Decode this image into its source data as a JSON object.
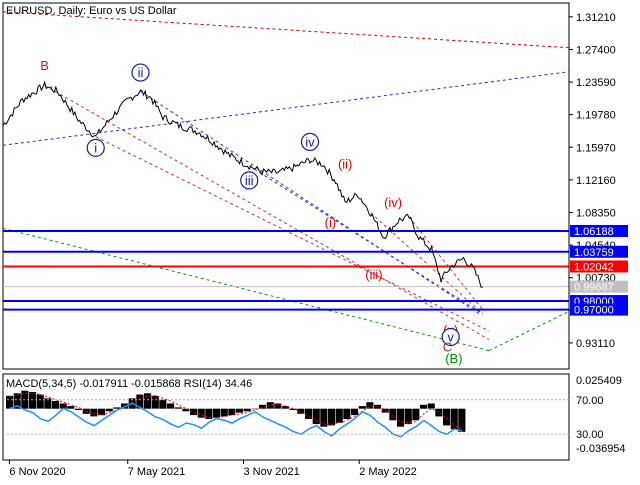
{
  "chart_data": [
    {
      "type": "line",
      "title": "EURUSD, Daily:  Euro vs US Dollar",
      "ylim": [
        0.9006,
        1.3283
      ],
      "y_ticks": [
        "1.31210",
        "1.27400",
        "1.23590",
        "1.19780",
        "1.15970",
        "1.12160",
        "1.08350",
        "1.04540",
        "1.00730",
        "0.96920",
        "0.93110"
      ],
      "x_ticks": [
        "6 Nov 2020",
        "7 May 2021",
        "3 Nov 2021",
        "2 May 2022"
      ],
      "x_tick_pos": [
        0.0,
        185.0,
        366.0,
        547.0
      ],
      "x_range": [
        -10,
        875
      ],
      "x_unit": "days from 6 Nov 2020",
      "price_series": [
        {
          "x": -10,
          "y": 1.185
        },
        {
          "x": 20,
          "y": 1.215
        },
        {
          "x": 55,
          "y": 1.232
        },
        {
          "x": 75,
          "y": 1.225
        },
        {
          "x": 110,
          "y": 1.19
        },
        {
          "x": 135,
          "y": 1.172
        },
        {
          "x": 160,
          "y": 1.195
        },
        {
          "x": 185,
          "y": 1.215
        },
        {
          "x": 205,
          "y": 1.225
        },
        {
          "x": 222,
          "y": 1.217
        },
        {
          "x": 240,
          "y": 1.195
        },
        {
          "x": 265,
          "y": 1.185
        },
        {
          "x": 295,
          "y": 1.178
        },
        {
          "x": 320,
          "y": 1.165
        },
        {
          "x": 345,
          "y": 1.15
        },
        {
          "x": 375,
          "y": 1.138
        },
        {
          "x": 395,
          "y": 1.131
        },
        {
          "x": 420,
          "y": 1.13
        },
        {
          "x": 445,
          "y": 1.136
        },
        {
          "x": 470,
          "y": 1.145
        },
        {
          "x": 490,
          "y": 1.14
        },
        {
          "x": 510,
          "y": 1.12
        },
        {
          "x": 525,
          "y": 1.095
        },
        {
          "x": 545,
          "y": 1.105
        },
        {
          "x": 565,
          "y": 1.083
        },
        {
          "x": 585,
          "y": 1.055
        },
        {
          "x": 610,
          "y": 1.075
        },
        {
          "x": 625,
          "y": 1.078
        },
        {
          "x": 640,
          "y": 1.055
        },
        {
          "x": 660,
          "y": 1.04
        },
        {
          "x": 675,
          "y": 1.005
        },
        {
          "x": 690,
          "y": 1.02
        },
        {
          "x": 710,
          "y": 1.03
        },
        {
          "x": 725,
          "y": 1.018
        },
        {
          "x": 740,
          "y": 0.996
        }
      ],
      "horizontal_levels": [
        {
          "value": 1.06188,
          "label": "1.06188",
          "color": "#0000ff"
        },
        {
          "value": 1.03759,
          "label": "1.03759",
          "color": "#0000ff"
        },
        {
          "value": 1.02042,
          "label": "1.02042",
          "color": "#ff0000"
        },
        {
          "value": 0.99687,
          "label": "0.99687",
          "color": "#c0c0c0"
        },
        {
          "value": 0.98,
          "label": "0.98000",
          "color": "#0000ff"
        },
        {
          "value": 0.97,
          "label": "0.97000",
          "color": "#0000ff"
        }
      ],
      "trend_lines": [
        {
          "x1": -10,
          "y1": 1.318,
          "x2": 875,
          "y2": 1.276,
          "color": "#cc0000"
        },
        {
          "x1": -10,
          "y1": 1.162,
          "x2": 875,
          "y2": 1.248,
          "color": "#2b2bd0"
        },
        {
          "x1": -10,
          "y1": 1.065,
          "x2": 750,
          "y2": 0.922,
          "color": "#009900"
        },
        {
          "x1": 750,
          "y1": 0.922,
          "x2": 875,
          "y2": 0.968,
          "color": "#009900"
        },
        {
          "x1": 55,
          "y1": 1.232,
          "x2": 750,
          "y2": 0.935,
          "color": "#cc3333"
        },
        {
          "x1": 135,
          "y1": 1.172,
          "x2": 750,
          "y2": 0.945,
          "color": "#cc3333"
        },
        {
          "x1": 205,
          "y1": 1.225,
          "x2": 735,
          "y2": 0.965,
          "color": "#3333cc"
        },
        {
          "x1": 375,
          "y1": 1.138,
          "x2": 740,
          "y2": 0.965,
          "color": "#3333cc"
        },
        {
          "x1": 565,
          "y1": 1.083,
          "x2": 740,
          "y2": 0.965,
          "color": "#cc3333"
        },
        {
          "x1": 625,
          "y1": 1.078,
          "x2": 740,
          "y2": 0.97,
          "color": "#cc3333"
        }
      ],
      "wave_labels": [
        {
          "text": "B",
          "x": 55,
          "y": 1.255,
          "color": "#a52a2a",
          "circled": false
        },
        {
          "text": "i",
          "x": 135,
          "y": 1.159,
          "color": "#1a1aa8",
          "circled": true
        },
        {
          "text": "ii",
          "x": 205,
          "y": 1.247,
          "color": "#1a1aa8",
          "circled": true
        },
        {
          "text": "iii",
          "x": 375,
          "y": 1.121,
          "color": "#1a1aa8",
          "circled": true
        },
        {
          "text": "iv",
          "x": 470,
          "y": 1.166,
          "color": "#1a1aa8",
          "circled": true
        },
        {
          "text": "(i)",
          "x": 502,
          "y": 1.072,
          "color": "#dd0000",
          "circled": false
        },
        {
          "text": "(ii)",
          "x": 525,
          "y": 1.14,
          "color": "#dd0000",
          "circled": false
        },
        {
          "text": "(iii)",
          "x": 570,
          "y": 1.011,
          "color": "#dd0000",
          "circled": false
        },
        {
          "text": "(iv)",
          "x": 600,
          "y": 1.095,
          "color": "#dd0000",
          "circled": false
        },
        {
          "text": "(v)",
          "x": 690,
          "y": 0.946,
          "color": "#dd0000",
          "circled": false
        },
        {
          "text": "v",
          "x": 690,
          "y": 0.938,
          "color": "#1a1aa8",
          "circled": true
        },
        {
          "text": "C",
          "x": 685,
          "y": 0.9265,
          "color": "#a52a2a",
          "circled": false
        },
        {
          "text": "(B)",
          "x": 695,
          "y": 0.913,
          "color": "#008800",
          "circled": false
        }
      ]
    },
    {
      "type": "bar",
      "title": "MACD(5,34,5) -0.017911 -0.015868 RSI(14) 34.46",
      "ylim": [
        -0.04,
        0.027
      ],
      "y_ticks": [
        "0.025409",
        "-0.036954"
      ],
      "rsi_ticks": [
        "70.00",
        "30.00"
      ],
      "macd_hist": [
        0.01,
        0.012,
        0.014,
        0.013,
        0.011,
        0.008,
        0.006,
        0.004,
        0.002,
        -0.001,
        -0.004,
        -0.006,
        -0.005,
        -0.002,
        0.001,
        0.004,
        0.008,
        0.011,
        0.012,
        0.01,
        0.007,
        0.004,
        0.001,
        -0.002,
        -0.005,
        -0.007,
        -0.008,
        -0.007,
        -0.006,
        -0.005,
        -0.003,
        -0.002,
        0.0,
        0.003,
        0.005,
        0.004,
        0.002,
        -0.001,
        -0.004,
        -0.008,
        -0.012,
        -0.014,
        -0.013,
        -0.011,
        -0.008,
        -0.005,
        0.002,
        0.005,
        0.003,
        -0.003,
        -0.009,
        -0.014,
        -0.012,
        -0.009,
        0.003,
        0.004,
        -0.006,
        -0.013,
        -0.016,
        -0.018
      ],
      "rsi_series": [
        60,
        63,
        58,
        55,
        48,
        45,
        52,
        60,
        56,
        50,
        44,
        40,
        46,
        52,
        58,
        62,
        66,
        61,
        56,
        50,
        47,
        42,
        38,
        43,
        41,
        37,
        44,
        48,
        46,
        43,
        48,
        52,
        56,
        50,
        46,
        42,
        38,
        33,
        30,
        36,
        40,
        33,
        28,
        36,
        42,
        48,
        56,
        52,
        44,
        38,
        30,
        27,
        34,
        39,
        46,
        40,
        33,
        30,
        36,
        34
      ],
      "signal_series": [
        0.009,
        0.011,
        0.012,
        0.012,
        0.011,
        0.009,
        0.007,
        0.005,
        0.003,
        0.001,
        -0.002,
        -0.004,
        -0.005,
        -0.003,
        -0.001,
        0.002,
        0.005,
        0.008,
        0.01,
        0.01,
        0.008,
        0.006,
        0.003,
        0.0,
        -0.003,
        -0.005,
        -0.007,
        -0.007,
        -0.006,
        -0.005,
        -0.004,
        -0.003,
        -0.001,
        0.001,
        0.003,
        0.003,
        0.002,
        0.0,
        -0.003,
        -0.006,
        -0.009,
        -0.012,
        -0.012,
        -0.011,
        -0.009,
        -0.006,
        -0.002,
        0.002,
        0.002,
        -0.001,
        -0.006,
        -0.01,
        -0.011,
        -0.01,
        -0.004,
        0.0,
        -0.003,
        -0.008,
        -0.013,
        -0.016
      ]
    }
  ]
}
